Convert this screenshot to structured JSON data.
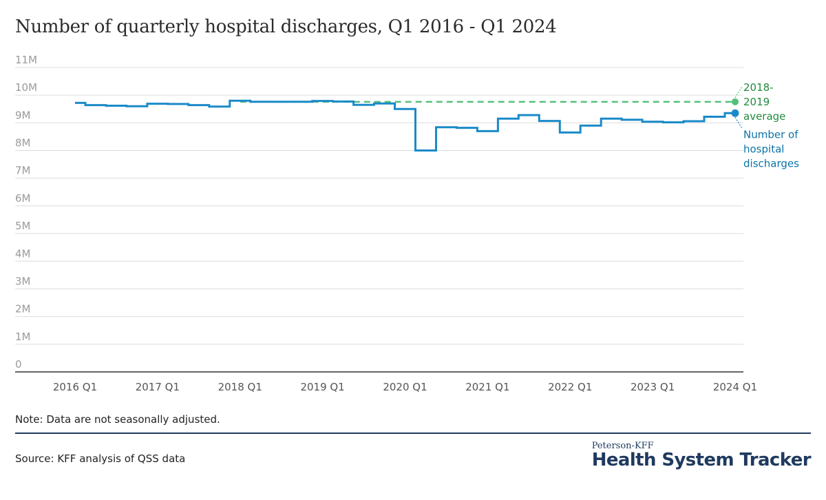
{
  "chart_data": {
    "type": "line",
    "title": "Number of quarterly hospital discharges, Q1 2016 - Q1 2024",
    "xlabel": "",
    "ylabel": "",
    "ylim": [
      0,
      11000000
    ],
    "grid": true,
    "y_ticks": [
      0,
      1000000,
      2000000,
      3000000,
      4000000,
      5000000,
      6000000,
      7000000,
      8000000,
      9000000,
      10000000,
      11000000
    ],
    "y_tick_labels": [
      "0",
      "1M",
      "2M",
      "3M",
      "4M",
      "5M",
      "6M",
      "7M",
      "8M",
      "9M",
      "10M",
      "11M"
    ],
    "x_tick_labels": [
      "2016 Q1",
      "2017 Q1",
      "2018 Q1",
      "2019 Q1",
      "2020 Q1",
      "2021 Q1",
      "2022 Q1",
      "2023 Q1",
      "2024 Q1"
    ],
    "x_tick_positions": [
      0,
      4,
      8,
      12,
      16,
      20,
      24,
      28,
      32
    ],
    "categories": [
      "2016 Q1",
      "2016 Q2",
      "2016 Q3",
      "2016 Q4",
      "2017 Q1",
      "2017 Q2",
      "2017 Q3",
      "2017 Q4",
      "2018 Q1",
      "2018 Q2",
      "2018 Q3",
      "2018 Q4",
      "2019 Q1",
      "2019 Q2",
      "2019 Q3",
      "2019 Q4",
      "2020 Q1",
      "2020 Q2",
      "2020 Q3",
      "2020 Q4",
      "2021 Q1",
      "2021 Q2",
      "2021 Q3",
      "2021 Q4",
      "2022 Q1",
      "2022 Q2",
      "2022 Q3",
      "2022 Q4",
      "2023 Q1",
      "2023 Q2",
      "2023 Q3",
      "2023 Q4",
      "2024 Q1"
    ],
    "series": [
      {
        "name": "Number of hospital discharges",
        "label": "Number of hospital discharges",
        "label_lines": [
          "Number of",
          "hospital",
          "discharges"
        ],
        "color": "#1a8ac8",
        "style": "step",
        "values": [
          9720000,
          9640000,
          9620000,
          9600000,
          9690000,
          9680000,
          9640000,
          9590000,
          9800000,
          9760000,
          9760000,
          9760000,
          9790000,
          9770000,
          9650000,
          9700000,
          9500000,
          8000000,
          8840000,
          8820000,
          8700000,
          9150000,
          9280000,
          9070000,
          8650000,
          8900000,
          9150000,
          9110000,
          9040000,
          9020000,
          9060000,
          9220000,
          9350000
        ]
      },
      {
        "name": "2018-2019 average",
        "label": "2018-2019 average",
        "label_lines": [
          "2018-",
          "2019",
          "average"
        ],
        "color": "#52c07a",
        "style": "dashed",
        "x_start": 8,
        "x_end": 32,
        "value": 9760000
      }
    ]
  },
  "footer": {
    "note": "Note: Data are not seasonally adjusted.",
    "source": "Source: KFF analysis of QSS data",
    "brand_small": "Peterson-KFF",
    "brand_big": "Health System Tracker"
  }
}
